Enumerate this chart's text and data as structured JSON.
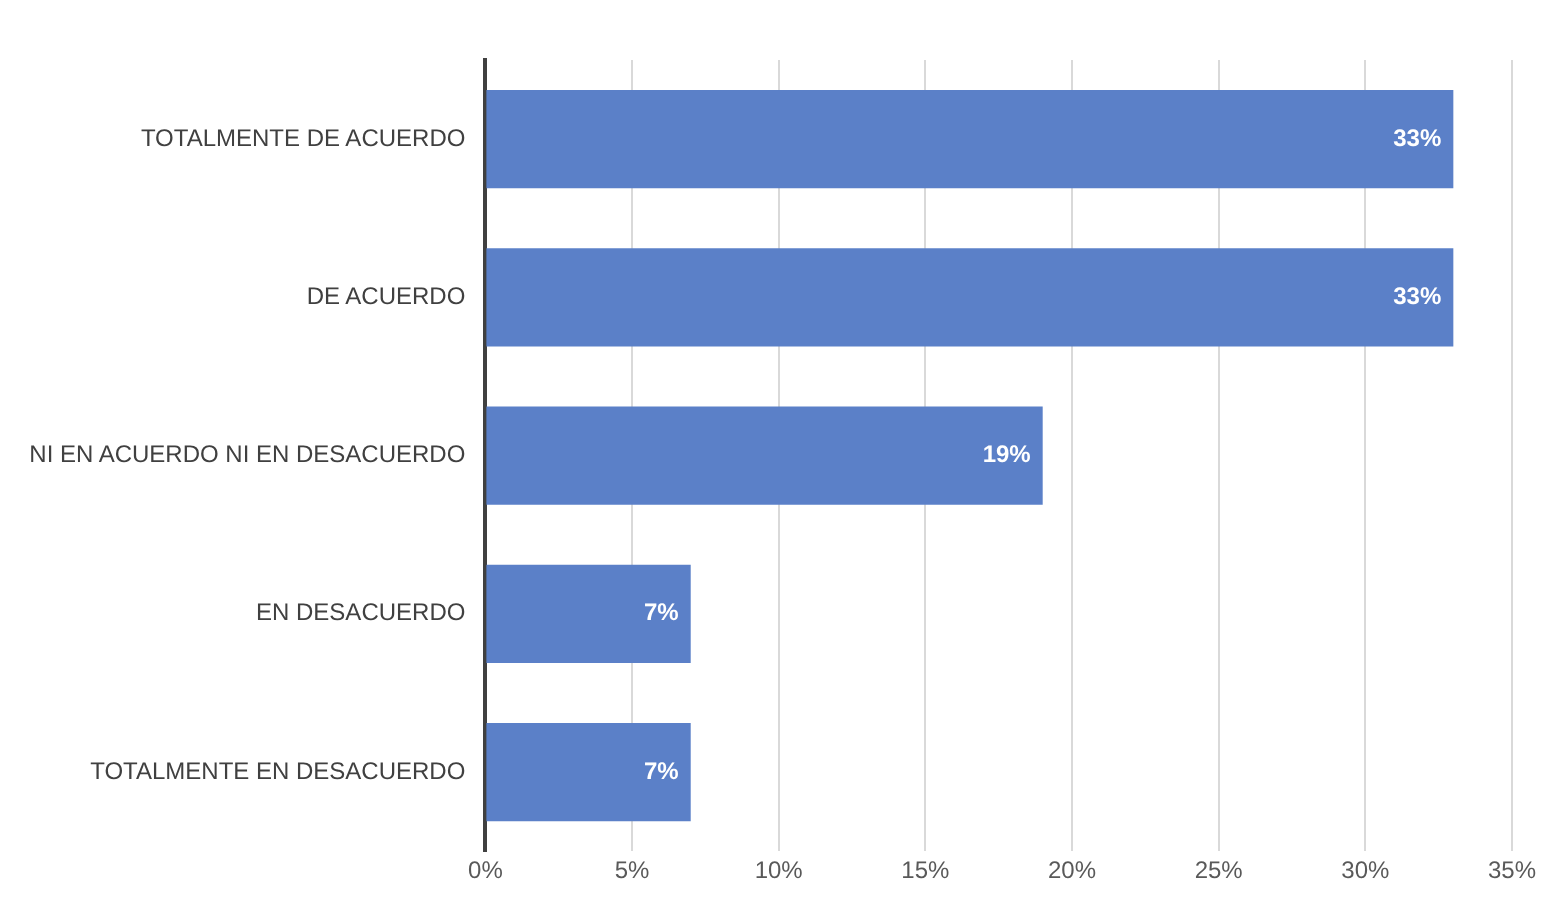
{
  "chart_data": {
    "type": "bar",
    "orientation": "horizontal",
    "categories": [
      "TOTALMENTE DE ACUERDO",
      "DE ACUERDO",
      "NI EN ACUERDO NI EN DESACUERDO",
      "EN DESACUERDO",
      "TOTALMENTE EN DESACUERDO"
    ],
    "values": [
      33,
      33,
      19,
      7,
      7
    ],
    "value_labels": [
      "33%",
      "33%",
      "19%",
      "7%",
      "7%"
    ],
    "color": "#5b80c8",
    "xlim": [
      0,
      35
    ],
    "xticks": [
      {
        "value": 0,
        "label": "0%"
      },
      {
        "value": 5,
        "label": "5%"
      },
      {
        "value": 10,
        "label": "10%"
      },
      {
        "value": 15,
        "label": "15%"
      },
      {
        "value": 20,
        "label": "20%"
      },
      {
        "value": 25,
        "label": "25%"
      },
      {
        "value": 30,
        "label": "30%"
      },
      {
        "value": 35,
        "label": "35%"
      }
    ],
    "grid": "x",
    "legend": false
  }
}
